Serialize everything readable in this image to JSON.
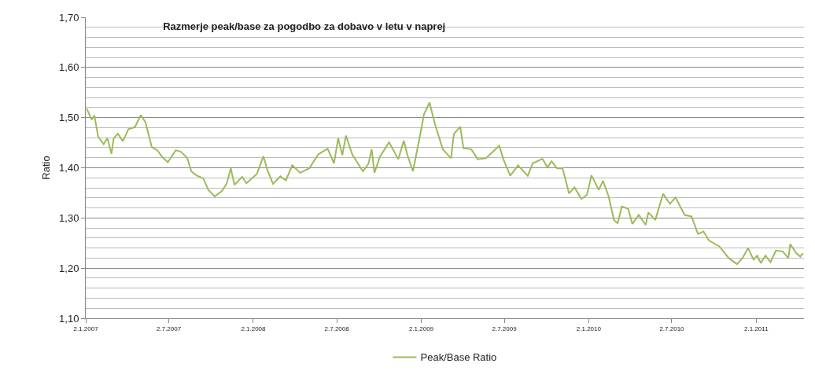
{
  "chart_data": {
    "type": "line",
    "title": "Razmerje peak/base za pogodbo za dobavo v letu v naprej",
    "ylabel": "Ratio",
    "xlim": [
      "2007-01-02",
      "2011-04-16"
    ],
    "xticks": [
      {
        "value": "2007-01-02",
        "label": "2.1.2007"
      },
      {
        "value": "2007-07-02",
        "label": "2.7.2007"
      },
      {
        "value": "2008-01-02",
        "label": "2.1.2008"
      },
      {
        "value": "2008-07-02",
        "label": "2.7.2008"
      },
      {
        "value": "2009-01-02",
        "label": "2.1.2009"
      },
      {
        "value": "2009-07-02",
        "label": "2.7.2009"
      },
      {
        "value": "2010-01-02",
        "label": "2.1.2010"
      },
      {
        "value": "2010-07-02",
        "label": "2.7.2010"
      },
      {
        "value": "2011-01-02",
        "label": "2.1.2011"
      }
    ],
    "ylim": [
      1.1,
      1.7
    ],
    "yticks": [
      {
        "value": 1.1,
        "label": "1,10"
      },
      {
        "value": 1.2,
        "label": "1,20"
      },
      {
        "value": 1.3,
        "label": "1,30"
      },
      {
        "value": 1.4,
        "label": "1,40"
      },
      {
        "value": 1.5,
        "label": "1,50"
      },
      {
        "value": 1.6,
        "label": "1,60"
      },
      {
        "value": 1.7,
        "label": "1,70"
      }
    ],
    "grid": "y",
    "legend": "bottom",
    "marker": "none",
    "line_style": "solid",
    "x": [
      "2007-01-04",
      "2007-01-09",
      "2007-01-15",
      "2007-01-21",
      "2007-01-29",
      "2007-02-10",
      "2007-02-18",
      "2007-02-27",
      "2007-03-04",
      "2007-03-13",
      "2007-03-24",
      "2007-04-05",
      "2007-04-19",
      "2007-05-02",
      "2007-05-12",
      "2007-05-26",
      "2007-06-07",
      "2007-06-18",
      "2007-06-30",
      "2007-07-17",
      "2007-07-28",
      "2007-08-11",
      "2007-08-20",
      "2007-08-31",
      "2007-09-15",
      "2007-09-26",
      "2007-10-10",
      "2007-10-25",
      "2007-11-05",
      "2007-11-14",
      "2007-11-22",
      "2007-12-09",
      "2007-12-18",
      "2008-01-10",
      "2008-01-24",
      "2008-02-02",
      "2008-02-14",
      "2008-03-01",
      "2008-03-13",
      "2008-03-27",
      "2008-04-13",
      "2008-05-03",
      "2008-05-23",
      "2008-06-12",
      "2008-06-26",
      "2008-07-05",
      "2008-07-14",
      "2008-07-22",
      "2008-08-05",
      "2008-08-28",
      "2008-09-09",
      "2008-09-16",
      "2008-09-22",
      "2008-10-04",
      "2008-10-24",
      "2008-11-13",
      "2008-11-25",
      "2008-12-03",
      "2008-12-15",
      "2009-01-01",
      "2009-01-08",
      "2009-01-20",
      "2009-02-01",
      "2009-02-18",
      "2009-03-08",
      "2009-03-14",
      "2009-03-28",
      "2009-04-04",
      "2009-04-21",
      "2009-05-05",
      "2009-05-23",
      "2009-06-21",
      "2009-06-30",
      "2009-07-15",
      "2009-08-01",
      "2009-08-22",
      "2009-09-02",
      "2009-09-23",
      "2009-10-04",
      "2009-10-13",
      "2009-10-25",
      "2009-11-06",
      "2009-11-20",
      "2009-12-02",
      "2009-12-17",
      "2009-12-29",
      "2010-01-08",
      "2010-01-24",
      "2010-02-02",
      "2010-02-14",
      "2010-02-26",
      "2010-03-06",
      "2010-03-15",
      "2010-03-29",
      "2010-04-07",
      "2010-04-21",
      "2010-05-06",
      "2010-05-12",
      "2010-05-27",
      "2010-06-13",
      "2010-06-28",
      "2010-07-10",
      "2010-07-30",
      "2010-08-14",
      "2010-08-28",
      "2010-09-09",
      "2010-09-21",
      "2010-10-14",
      "2010-11-03",
      "2010-11-21",
      "2010-12-03",
      "2010-12-15",
      "2010-12-27",
      "2011-01-04",
      "2011-01-12",
      "2011-01-22",
      "2011-02-02",
      "2011-02-14",
      "2011-03-01",
      "2011-03-13",
      "2011-03-17",
      "2011-03-30",
      "2011-04-08",
      "2011-04-14"
    ],
    "series": [
      {
        "name": "Peak/Base Ratio",
        "color": "#9bbb59",
        "values": [
          1.518,
          1.508,
          1.496,
          1.504,
          1.462,
          1.447,
          1.459,
          1.428,
          1.459,
          1.468,
          1.453,
          1.477,
          1.481,
          1.505,
          1.491,
          1.441,
          1.435,
          1.421,
          1.411,
          1.435,
          1.432,
          1.42,
          1.393,
          1.385,
          1.379,
          1.356,
          1.343,
          1.353,
          1.368,
          1.399,
          1.366,
          1.382,
          1.369,
          1.388,
          1.423,
          1.395,
          1.368,
          1.383,
          1.375,
          1.405,
          1.39,
          1.399,
          1.427,
          1.438,
          1.409,
          1.459,
          1.425,
          1.464,
          1.426,
          1.393,
          1.408,
          1.437,
          1.39,
          1.422,
          1.451,
          1.417,
          1.454,
          1.425,
          1.393,
          1.472,
          1.507,
          1.53,
          1.487,
          1.437,
          1.419,
          1.467,
          1.482,
          1.439,
          1.437,
          1.417,
          1.419,
          1.444,
          1.417,
          1.384,
          1.405,
          1.384,
          1.409,
          1.418,
          1.401,
          1.413,
          1.399,
          1.399,
          1.349,
          1.361,
          1.338,
          1.346,
          1.385,
          1.356,
          1.374,
          1.344,
          1.296,
          1.289,
          1.323,
          1.318,
          1.288,
          1.306,
          1.286,
          1.311,
          1.296,
          1.348,
          1.328,
          1.341,
          1.306,
          1.303,
          1.268,
          1.273,
          1.255,
          1.243,
          1.22,
          1.208,
          1.22,
          1.24,
          1.217,
          1.225,
          1.21,
          1.225,
          1.212,
          1.235,
          1.233,
          1.22,
          1.248,
          1.23,
          1.223,
          1.23
        ]
      }
    ]
  }
}
